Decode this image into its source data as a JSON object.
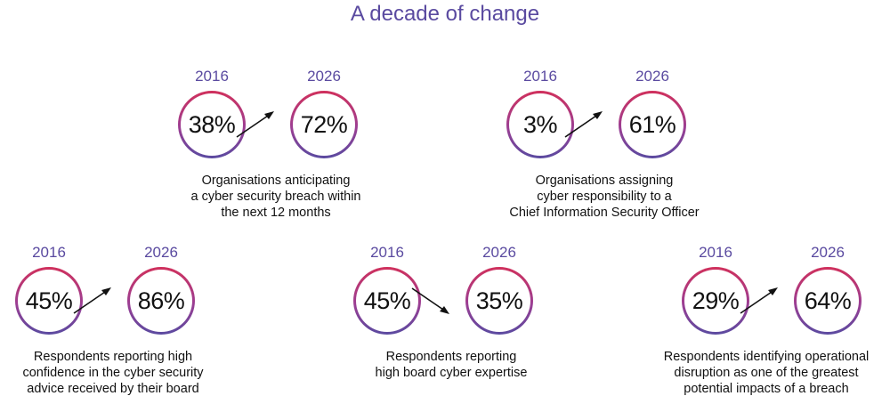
{
  "title": "A decade of change",
  "colors": {
    "accent": "#5a4aa0",
    "ring_gradient_top": "#d0305c",
    "ring_gradient_bottom": "#5a4aa0"
  },
  "stats": [
    {
      "year_from": "2016",
      "value_from": "38%",
      "year_to": "2026",
      "value_to": "72%",
      "trend": "up",
      "caption": [
        "Organisations anticipating",
        "a cyber security breach within",
        "the next 12 months"
      ]
    },
    {
      "year_from": "2016",
      "value_from": "3%",
      "year_to": "2026",
      "value_to": "61%",
      "trend": "up",
      "caption": [
        "Organisations assigning",
        "cyber responsibility to a",
        "Chief Information Security Officer"
      ]
    },
    {
      "year_from": "2016",
      "value_from": "45%",
      "year_to": "2026",
      "value_to": "86%",
      "trend": "up",
      "caption": [
        "Respondents reporting high",
        "confidence in the cyber security",
        "advice received by their board"
      ]
    },
    {
      "year_from": "2016",
      "value_from": "45%",
      "year_to": "2026",
      "value_to": "35%",
      "trend": "down",
      "caption": [
        "Respondents reporting",
        "high board cyber expertise"
      ]
    },
    {
      "year_from": "2016",
      "value_from": "29%",
      "year_to": "2026",
      "value_to": "64%",
      "trend": "up",
      "caption": [
        "Respondents identifying operational",
        "disruption as one of the greatest",
        "potential impacts of a breach"
      ]
    }
  ]
}
